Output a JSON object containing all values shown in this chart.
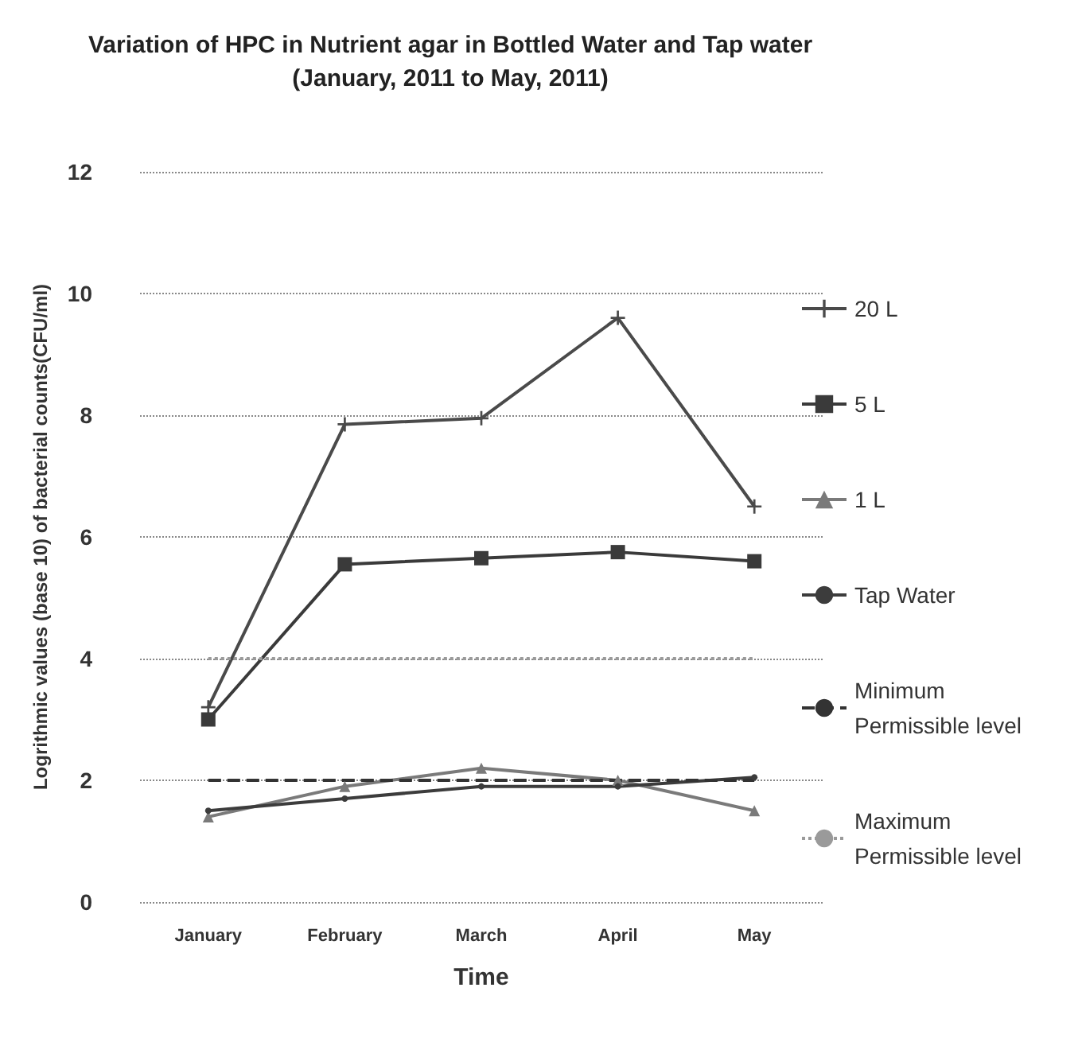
{
  "chart_data": {
    "type": "line",
    "title": "Variation of HPC in Nutrient agar in Bottled Water and Tap water",
    "subtitle": "(January, 2011 to May, 2011)",
    "xlabel": "Time",
    "ylabel": "Logrithmic values (base 10) of bacterial counts(CFU/ml)",
    "categories": [
      "January",
      "February",
      "March",
      "April",
      "May"
    ],
    "ylim": [
      0,
      12
    ],
    "yticks": [
      0,
      2,
      4,
      6,
      8,
      10,
      12
    ],
    "grid": "y",
    "legend": "right",
    "series": [
      {
        "name": "20 L",
        "color": "#4a4a4a",
        "marker": "cross",
        "line_style": "solid",
        "values": [
          3.2,
          7.85,
          7.95,
          9.6,
          6.5
        ]
      },
      {
        "name": "5 L",
        "color": "#3a3a3a",
        "marker": "square",
        "line_style": "solid",
        "values": [
          3.0,
          5.55,
          5.65,
          5.75,
          5.6
        ]
      },
      {
        "name": "1 L",
        "color": "#7a7a7a",
        "marker": "triangle",
        "line_style": "solid",
        "values": [
          1.4,
          1.9,
          2.2,
          2.0,
          1.5
        ]
      },
      {
        "name": "Tap Water",
        "color": "#3c3c3c",
        "marker": "circle",
        "line_style": "solid",
        "values": [
          1.5,
          1.7,
          1.9,
          1.9,
          2.05
        ]
      },
      {
        "name": "Minimum Permissible level",
        "color": "#333333",
        "marker": "none",
        "line_style": "dashed",
        "values": [
          2,
          2,
          2,
          2,
          2
        ]
      },
      {
        "name": "Maximum Permissible level",
        "color": "#9a9a9a",
        "marker": "none",
        "line_style": "dotted",
        "values": [
          4,
          4,
          4,
          4,
          4
        ]
      }
    ]
  }
}
